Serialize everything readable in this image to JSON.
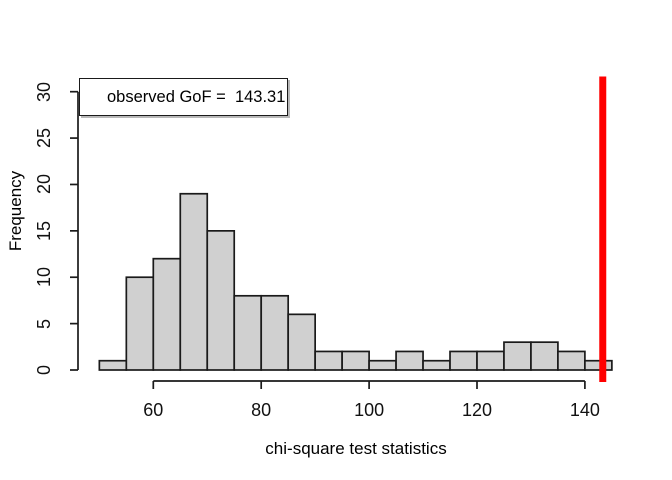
{
  "chart_data": {
    "type": "bar",
    "subtype": "histogram",
    "title": "",
    "xlabel": "chi-square test statistics",
    "ylabel": "Frequency",
    "bin_edges": [
      50,
      55,
      60,
      65,
      70,
      75,
      80,
      85,
      90,
      95,
      100,
      105,
      110,
      115,
      120,
      125,
      130,
      135,
      140,
      145
    ],
    "counts": [
      1,
      10,
      12,
      19,
      15,
      8,
      8,
      6,
      2,
      2,
      1,
      2,
      1,
      2,
      2,
      3,
      3,
      2,
      1
    ],
    "x_ticks": [
      60,
      80,
      100,
      120,
      140
    ],
    "y_ticks": [
      0,
      5,
      10,
      15,
      20,
      25,
      30
    ],
    "xlim": [
      46.2,
      148.8
    ],
    "ylim": [
      0,
      31
    ],
    "grid": false,
    "legend_position": "topleft",
    "colors": {
      "bar_fill": "#d0d0d0",
      "bar_border": "#1a1a1a",
      "axis": "#1a1a1a",
      "observed_line": "#ff0000",
      "background": "#ffffff"
    },
    "observed_line": {
      "value": 143.31,
      "color": "#ff0000"
    },
    "legend": {
      "text": "observed GoF =  143.31"
    }
  }
}
